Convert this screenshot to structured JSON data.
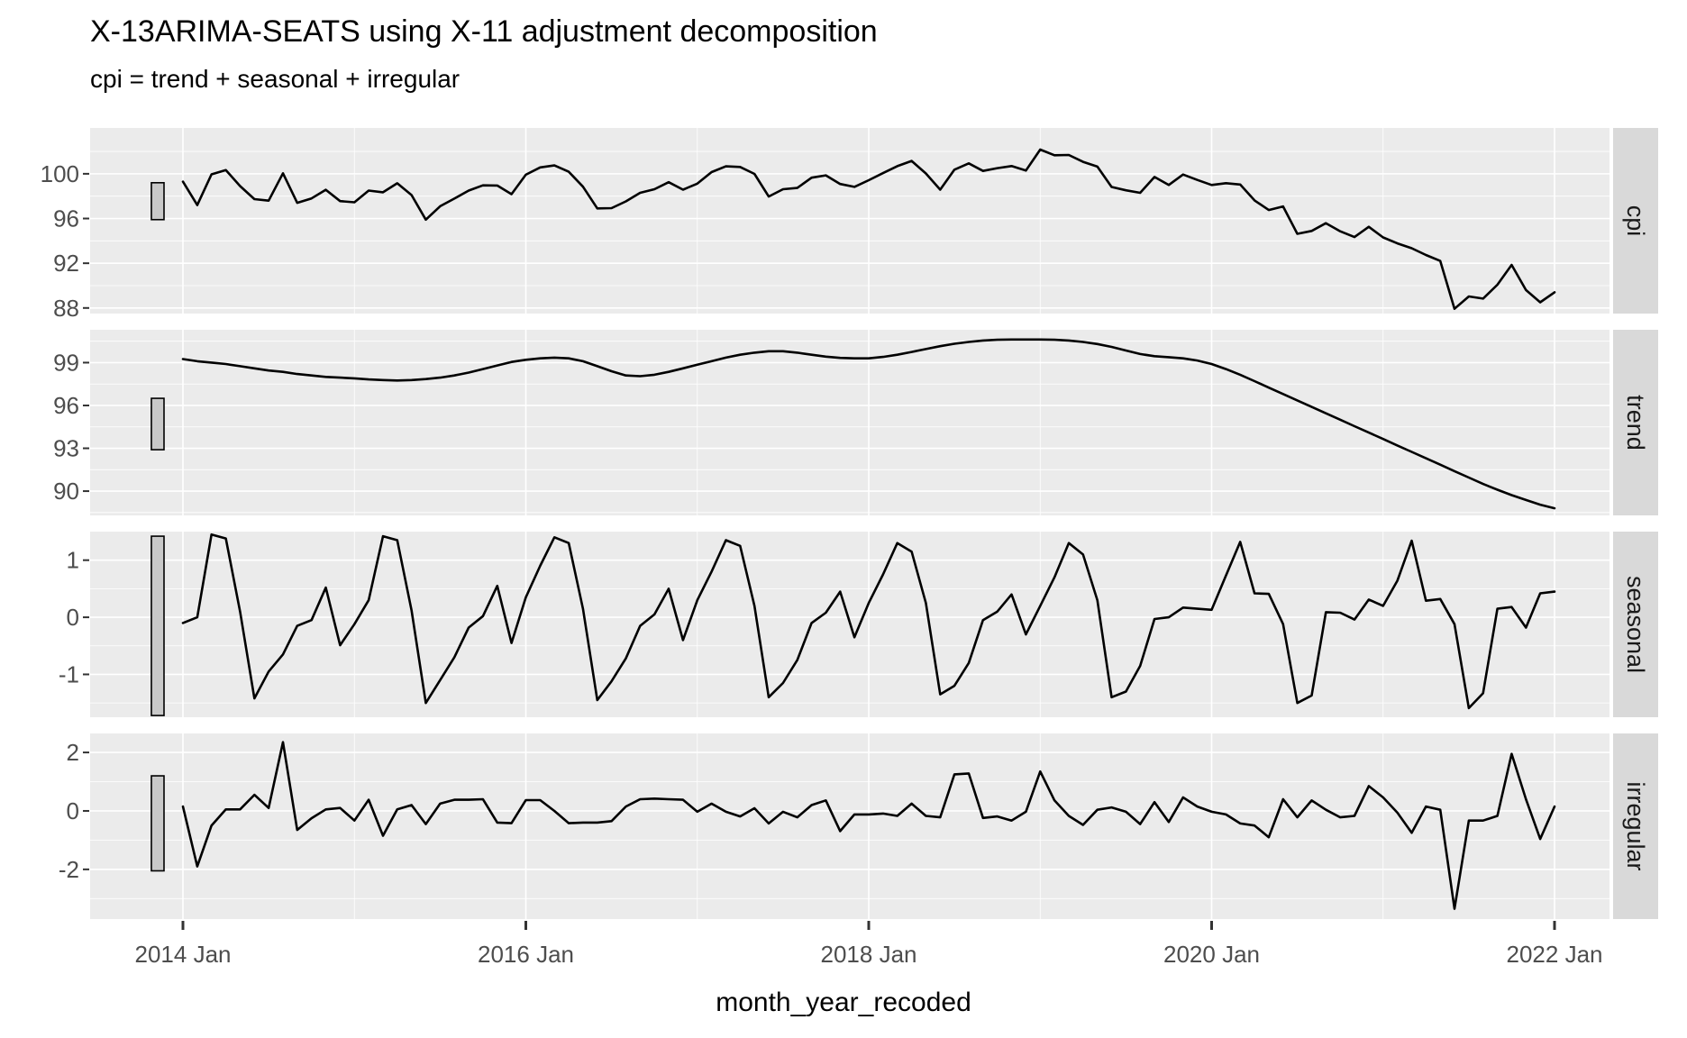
{
  "header": {
    "title": "X-13ARIMA-SEATS using X-11 adjustment decomposition",
    "subtitle": "cpi = trend + seasonal + irregular"
  },
  "chart_data": {
    "type": "line",
    "title": "X-13ARIMA-SEATS using X-11 adjustment decomposition",
    "subtitle": "cpi = trend + seasonal + irregular",
    "xlabel": "month_year_recoded",
    "x_start": "2014 Jan",
    "x_end": "2022 Jan",
    "x_frequency": "monthly",
    "n_points": 97,
    "x_tick_labels": [
      "2014 Jan",
      "2016 Jan",
      "2018 Jan",
      "2020 Jan",
      "2022 Jan"
    ],
    "grid": "on",
    "legend": "none",
    "facet_layout": "rows, strip labels on right",
    "line_color": "#000000",
    "panels": [
      {
        "name": "cpi",
        "ylim": [
          87.5,
          104.1
        ],
        "yticks": [
          100,
          96,
          92,
          88
        ],
        "yticks_minor": [
          102,
          98,
          94,
          90
        ],
        "range_bar": [
          95.9,
          99.2
        ],
        "values": [
          99.3,
          97.2,
          99.95,
          100.33,
          98.9,
          97.73,
          97.6,
          100.05,
          97.4,
          97.8,
          98.57,
          97.56,
          97.45,
          98.5,
          98.35,
          99.15,
          98.1,
          95.9,
          97.1,
          97.78,
          98.5,
          98.97,
          98.95,
          98.18,
          99.92,
          100.57,
          100.75,
          100.18,
          98.85,
          96.9,
          96.93,
          97.53,
          98.3,
          98.62,
          99.25,
          98.58,
          99.12,
          100.15,
          100.67,
          100.61,
          99.99,
          97.97,
          98.62,
          98.73,
          99.65,
          99.86,
          99.09,
          98.83,
          99.43,
          100.06,
          100.68,
          101.15,
          100.03,
          98.58,
          100.37,
          100.93,
          100.26,
          100.51,
          100.69,
          100.29,
          102.17,
          101.66,
          101.68,
          101.07,
          100.64,
          98.82,
          98.52,
          98.3,
          99.72,
          99.0,
          99.93,
          99.45,
          99.0,
          99.16,
          99.04,
          97.62,
          96.76,
          97.08,
          94.63,
          94.89,
          95.58,
          94.86,
          94.34,
          95.26,
          94.31,
          93.78,
          93.34,
          92.74,
          92.21,
          87.93,
          89.03,
          88.84,
          90.08,
          91.85,
          89.6,
          88.51,
          89.4
        ]
      },
      {
        "name": "trend",
        "ylim": [
          88.3,
          101.3
        ],
        "yticks": [
          99,
          96,
          93,
          90
        ],
        "yticks_minor": [
          100.5,
          97.5,
          94.5,
          91.5,
          88.5
        ],
        "range_bar": [
          92.9,
          96.5
        ],
        "values": [
          99.25,
          99.1,
          99.0,
          98.9,
          98.75,
          98.6,
          98.45,
          98.35,
          98.2,
          98.1,
          98.0,
          97.95,
          97.9,
          97.82,
          97.78,
          97.75,
          97.78,
          97.85,
          97.95,
          98.1,
          98.3,
          98.55,
          98.8,
          99.05,
          99.2,
          99.3,
          99.35,
          99.3,
          99.1,
          98.75,
          98.4,
          98.1,
          98.05,
          98.15,
          98.35,
          98.6,
          98.85,
          99.1,
          99.35,
          99.55,
          99.7,
          99.8,
          99.8,
          99.7,
          99.55,
          99.42,
          99.33,
          99.3,
          99.3,
          99.4,
          99.55,
          99.75,
          99.95,
          100.15,
          100.32,
          100.45,
          100.55,
          100.6,
          100.62,
          100.62,
          100.62,
          100.6,
          100.55,
          100.45,
          100.3,
          100.1,
          99.85,
          99.6,
          99.45,
          99.38,
          99.3,
          99.15,
          98.9,
          98.55,
          98.15,
          97.7,
          97.25,
          96.8,
          96.35,
          95.9,
          95.45,
          95.0,
          94.55,
          94.1,
          93.65,
          93.2,
          92.75,
          92.3,
          91.85,
          91.4,
          90.95,
          90.5,
          90.1,
          89.72,
          89.38,
          89.05,
          88.8
        ]
      },
      {
        "name": "seasonal",
        "ylim": [
          -1.75,
          1.5
        ],
        "yticks": [
          1,
          0,
          -1
        ],
        "yticks_minor": [
          0.5,
          -0.5,
          -1.5
        ],
        "range_bar": [
          -1.72,
          1.42
        ],
        "values": [
          -0.1,
          0.0,
          1.45,
          1.38,
          0.1,
          -1.42,
          -0.95,
          -0.65,
          -0.15,
          -0.05,
          0.52,
          -0.49,
          -0.12,
          0.3,
          1.42,
          1.35,
          0.12,
          -1.5,
          -1.1,
          -0.7,
          -0.18,
          0.02,
          0.55,
          -0.45,
          0.35,
          0.9,
          1.4,
          1.3,
          0.15,
          -1.45,
          -1.12,
          -0.72,
          -0.15,
          0.05,
          0.5,
          -0.4,
          0.3,
          0.8,
          1.35,
          1.25,
          0.2,
          -1.4,
          -1.15,
          -0.75,
          -0.1,
          0.08,
          0.45,
          -0.35,
          0.25,
          0.75,
          1.3,
          1.15,
          0.25,
          -1.35,
          -1.2,
          -0.8,
          -0.05,
          0.1,
          0.4,
          -0.3,
          0.2,
          0.7,
          1.3,
          1.1,
          0.3,
          -1.4,
          -1.3,
          -0.85,
          -0.03,
          0.0,
          0.17,
          0.15,
          0.13,
          0.73,
          1.32,
          0.42,
          0.41,
          -0.12,
          -1.5,
          -1.37,
          0.09,
          0.08,
          -0.04,
          0.31,
          0.2,
          0.64,
          1.34,
          0.29,
          0.32,
          -0.12,
          -1.59,
          -1.33,
          0.15,
          0.18,
          -0.18,
          0.42,
          0.45
        ]
      },
      {
        "name": "irregular",
        "ylim": [
          -3.7,
          2.65
        ],
        "yticks": [
          2,
          0,
          -2
        ],
        "yticks_minor": [
          1,
          -1,
          -3
        ],
        "range_bar": [
          -2.05,
          1.2
        ],
        "values": [
          0.15,
          -1.9,
          -0.5,
          0.05,
          0.05,
          0.55,
          0.1,
          2.35,
          -0.65,
          -0.25,
          0.05,
          0.1,
          -0.33,
          0.38,
          -0.85,
          0.05,
          0.2,
          -0.45,
          0.25,
          0.38,
          0.38,
          0.4,
          -0.4,
          -0.42,
          0.37,
          0.37,
          0.0,
          -0.42,
          -0.4,
          -0.4,
          -0.35,
          0.15,
          0.4,
          0.42,
          0.4,
          0.38,
          -0.03,
          0.25,
          -0.03,
          -0.19,
          0.09,
          -0.43,
          -0.03,
          -0.22,
          0.2,
          0.36,
          -0.69,
          -0.12,
          -0.12,
          -0.09,
          -0.17,
          0.25,
          -0.17,
          -0.22,
          1.25,
          1.28,
          -0.24,
          -0.19,
          -0.33,
          -0.03,
          1.35,
          0.36,
          -0.17,
          -0.48,
          0.04,
          0.12,
          -0.03,
          -0.45,
          0.3,
          -0.38,
          0.46,
          0.15,
          -0.03,
          -0.12,
          -0.43,
          -0.5,
          -0.9,
          0.4,
          -0.22,
          0.36,
          0.04,
          -0.22,
          -0.17,
          0.85,
          0.46,
          -0.06,
          -0.75,
          0.15,
          0.04,
          -3.35,
          -0.33,
          -0.33,
          -0.17,
          1.95,
          0.4,
          -0.96,
          0.15
        ]
      }
    ]
  },
  "colors": {
    "panel_background": "#EBEBEB",
    "grid_line": "#FFFFFF",
    "strip_background": "#D9D9D9",
    "strip_text": "#1A1A1A",
    "axis_text": "#4D4D4D",
    "tick_mark": "#333333",
    "series_line": "#000000",
    "range_bar_fill": "#C9C9C9",
    "range_bar_stroke": "#000000"
  }
}
